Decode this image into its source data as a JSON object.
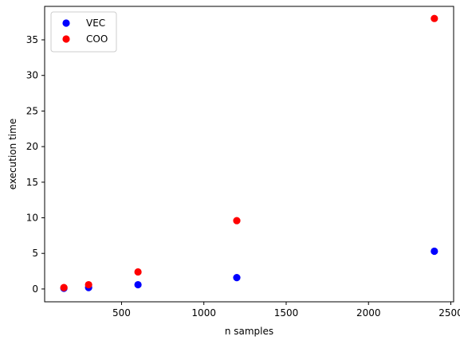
{
  "chart_data": {
    "type": "scatter",
    "title": "",
    "xlabel": "n samples",
    "ylabel": "execution time",
    "xlim": [
      33,
      2517
    ],
    "ylim": [
      -1.8,
      39.7
    ],
    "xticks": [
      500,
      1000,
      1500,
      2000,
      2500
    ],
    "yticks": [
      0,
      5,
      10,
      15,
      20,
      25,
      30,
      35
    ],
    "grid": false,
    "legend_position": "top-left",
    "series": [
      {
        "name": "VEC",
        "color": "#0000ff",
        "x": [
          150,
          300,
          600,
          1200,
          2400
        ],
        "y": [
          0.1,
          0.2,
          0.6,
          1.6,
          5.3
        ]
      },
      {
        "name": "COO",
        "color": "#ff0000",
        "x": [
          150,
          300,
          600,
          1200,
          2400
        ],
        "y": [
          0.2,
          0.6,
          2.4,
          9.6,
          38.0
        ]
      }
    ]
  }
}
